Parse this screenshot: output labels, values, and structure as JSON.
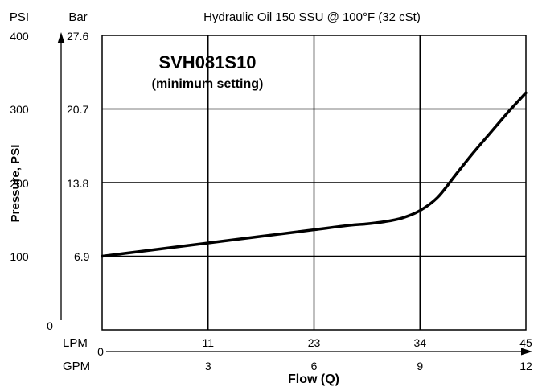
{
  "chart_data": {
    "type": "line",
    "title": "Hydraulic Oil 150 SSU @ 100°F (32 cSt)",
    "subtitle_line1": "SVH081S10",
    "subtitle_line2": "(minimum setting)",
    "ylabel": "Pressure, PSI",
    "xlabel": "Flow (Q)",
    "y_unit_psi": "PSI",
    "y_unit_bar": "Bar",
    "x_unit_lpm": "LPM",
    "x_unit_gpm": "GPM",
    "y_ticks_psi": [
      "0",
      "100",
      "200",
      "300",
      "400"
    ],
    "y_ticks_bar": [
      "6.9",
      "13.8",
      "20.7",
      "27.6"
    ],
    "x_ticks_gpm": [
      "0",
      "3",
      "6",
      "9",
      "12"
    ],
    "x_ticks_lpm": [
      "11",
      "23",
      "34",
      "45"
    ],
    "xlim": [
      0,
      12
    ],
    "ylim": [
      0,
      400
    ],
    "grid": true,
    "series": [
      {
        "x": [
          0,
          1,
          2,
          3,
          4,
          5,
          6,
          7,
          7.5,
          8,
          8.5,
          9,
          9.5,
          10,
          10.5,
          11,
          11.5,
          12
        ],
        "y": [
          100,
          106,
          112,
          118,
          124,
          130,
          136,
          142,
          144,
          147,
          152,
          162,
          180,
          210,
          240,
          268,
          296,
          322
        ]
      }
    ]
  }
}
